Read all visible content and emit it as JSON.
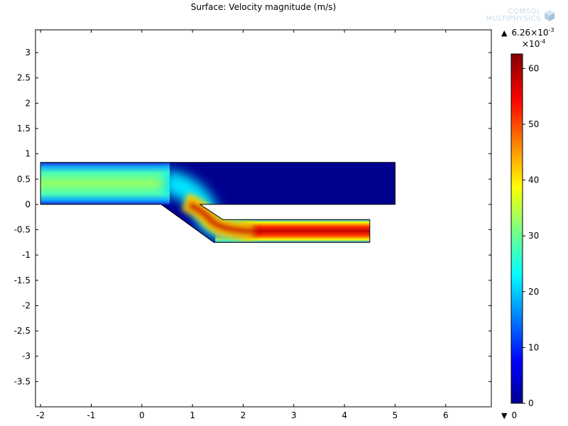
{
  "title": "Surface: Velocity magnitude (m/s)",
  "logo": {
    "line1": "COMSOL",
    "line2": "MULTIPHYSICS",
    "icon": "comsol-cube-icon"
  },
  "colorbar": {
    "max_base": "6.26×10",
    "max_exp": "-3",
    "unit_base": "×10",
    "unit_exp": "-4",
    "min_label": "0",
    "up_arrow": "▲",
    "down_arrow": "▼",
    "colormap": "rainbow",
    "range": [
      0,
      62.6
    ],
    "ticks": [
      "0",
      "10",
      "20",
      "30",
      "40",
      "50",
      "60"
    ],
    "tick_values": [
      0,
      10,
      20,
      30,
      40,
      50,
      60
    ]
  },
  "chart_data": {
    "type": "heatmap",
    "title": "Surface: Velocity magnitude (m/s)",
    "xlabel": "",
    "ylabel": "",
    "xlim": [
      -2.1,
      6.9
    ],
    "ylim": [
      -4.0,
      3.45
    ],
    "x_ticks": [
      {
        "v": -2,
        "label": "-2"
      },
      {
        "v": -1,
        "label": "-1"
      },
      {
        "v": 0,
        "label": "0"
      },
      {
        "v": 1,
        "label": "1"
      },
      {
        "v": 2,
        "label": "2"
      },
      {
        "v": 3,
        "label": "3"
      },
      {
        "v": 4,
        "label": "4"
      },
      {
        "v": 5,
        "label": "5"
      },
      {
        "v": 6,
        "label": "6"
      }
    ],
    "y_ticks": [
      {
        "v": 3,
        "label": "3"
      },
      {
        "v": 2.5,
        "label": "2.5"
      },
      {
        "v": 2,
        "label": "2"
      },
      {
        "v": 1.5,
        "label": "1.5"
      },
      {
        "v": 1,
        "label": "1"
      },
      {
        "v": 0.5,
        "label": "0.5"
      },
      {
        "v": 0,
        "label": "0"
      },
      {
        "v": -0.5,
        "label": "-0.5"
      },
      {
        "v": -1,
        "label": "-1"
      },
      {
        "v": -1.5,
        "label": "-1.5"
      },
      {
        "v": -2,
        "label": "-2"
      },
      {
        "v": -2.5,
        "label": "-2.5"
      },
      {
        "v": -3,
        "label": "-3"
      },
      {
        "v": -3.5,
        "label": "-3.5"
      }
    ],
    "domain": {
      "upper_channel": {
        "x": [
          -2,
          5
        ],
        "y": [
          0,
          0.83
        ]
      },
      "diagonal_section": {
        "from": [
          0.38,
          0
        ],
        "to": [
          1.42,
          -0.75
        ]
      },
      "lower_channel": {
        "x": [
          1.42,
          4.5
        ],
        "y": [
          -0.75,
          -0.3
        ]
      }
    },
    "field_notes": {
      "inlet_velocity_x10e-4": 33,
      "outlet_peak_velocity_x10e-4": 62.6,
      "upper_right_region_velocity_x10e-4": 0
    }
  }
}
